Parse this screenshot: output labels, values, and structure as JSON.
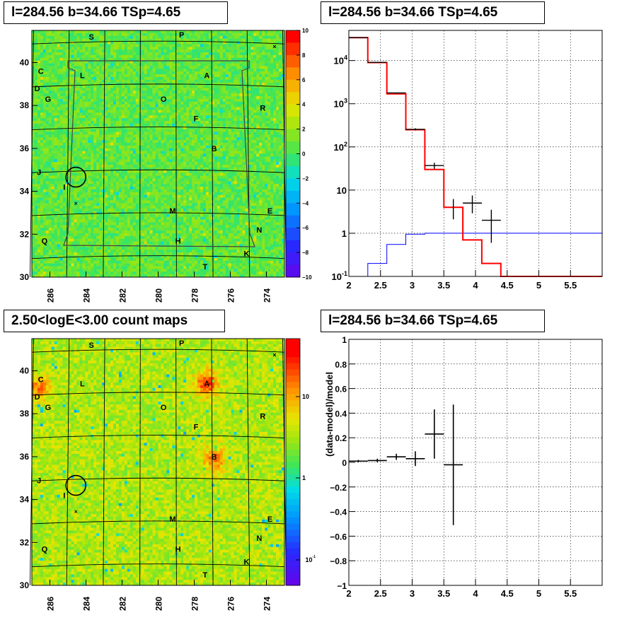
{
  "panels": {
    "top_left": {
      "title": "l=284.56 b=34.66 TSp=4.65"
    },
    "top_right": {
      "title": "l=284.56 b=34.66 TSp=4.65"
    },
    "bottom_left": {
      "title": "2.50<logE<3.00 count maps"
    },
    "bottom_right": {
      "title": "l=284.56 b=34.66 TSp=4.65"
    }
  },
  "colors": {
    "data": "#000000",
    "model": "#ff0000",
    "background": "#0000ff"
  },
  "chart_data": [
    {
      "type": "heatmap",
      "title": "l=284.56 b=34.66 TSp=4.65",
      "xlim": [
        287,
        273
      ],
      "ylim": [
        30,
        41.5
      ],
      "x_ticks": [
        "286",
        "284",
        "282",
        "280",
        "278",
        "276",
        "274"
      ],
      "y_ticks": [
        "30",
        "32",
        "34",
        "36",
        "38",
        "40"
      ],
      "colorbar": {
        "range": [
          -10,
          10
        ],
        "ticks": [
          "10",
          "8",
          "6",
          "4",
          "2",
          "0",
          "−2",
          "−4",
          "−6",
          "−8",
          "−10"
        ]
      },
      "sources": [
        {
          "label": "S",
          "l": 283.7,
          "b": 41.2
        },
        {
          "label": "P",
          "l": 278.7,
          "b": 41.3
        },
        {
          "label": "C",
          "l": 286.5,
          "b": 39.6
        },
        {
          "label": "L",
          "l": 284.2,
          "b": 39.4
        },
        {
          "label": "A",
          "l": 277.3,
          "b": 39.4
        },
        {
          "label": "D",
          "l": 286.7,
          "b": 38.8
        },
        {
          "label": "G",
          "l": 286.1,
          "b": 38.3
        },
        {
          "label": "O",
          "l": 279.7,
          "b": 38.3
        },
        {
          "label": "R",
          "l": 274.2,
          "b": 37.9
        },
        {
          "label": "F",
          "l": 277.9,
          "b": 37.4
        },
        {
          "label": "B",
          "l": 276.9,
          "b": 36.0
        },
        {
          "label": "J",
          "l": 286.6,
          "b": 34.9
        },
        {
          "label": "I",
          "l": 285.2,
          "b": 34.2
        },
        {
          "label": "M",
          "l": 279.2,
          "b": 33.1
        },
        {
          "label": "E",
          "l": 273.8,
          "b": 33.1
        },
        {
          "label": "N",
          "l": 274.4,
          "b": 32.2
        },
        {
          "label": "Q",
          "l": 286.3,
          "b": 31.7
        },
        {
          "label": "H",
          "l": 278.9,
          "b": 31.7
        },
        {
          "label": "K",
          "l": 275.1,
          "b": 31.1
        },
        {
          "label": "T",
          "l": 277.4,
          "b": 30.5
        }
      ]
    },
    {
      "type": "line",
      "title": "l=284.56 b=34.66 TSp=4.65",
      "yscale": "log",
      "xlim": [
        2,
        6
      ],
      "ylim": [
        0.1,
        50000
      ],
      "x_ticks": [
        "2",
        "2.5",
        "3",
        "3.5",
        "4",
        "4.5",
        "5",
        "5.5"
      ],
      "y_ticks": [
        "10^-1",
        "1",
        "10",
        "10^2",
        "10^3",
        "10^4"
      ],
      "grid": true,
      "series": [
        {
          "kind": "data",
          "points": [
            {
              "x": 2.15,
              "xerr": 0.15,
              "y": 34000,
              "ylo": 33800,
              "yhi": 34200
            },
            {
              "x": 2.45,
              "xerr": 0.15,
              "y": 9100,
              "ylo": 9000,
              "yhi": 9200
            },
            {
              "x": 2.75,
              "xerr": 0.15,
              "y": 1780,
              "ylo": 1740,
              "yhi": 1820
            },
            {
              "x": 3.05,
              "xerr": 0.15,
              "y": 255,
              "ylo": 240,
              "yhi": 270
            },
            {
              "x": 3.35,
              "xerr": 0.15,
              "y": 37,
              "ylo": 31,
              "yhi": 43
            },
            {
              "x": 3.65,
              "xerr": 0.0,
              "y": 4.0,
              "ylo": 2.1,
              "yhi": 6.2
            },
            {
              "x": 3.95,
              "xerr": 0.15,
              "y": 5.0,
              "ylo": 2.9,
              "yhi": 7.5
            },
            {
              "x": 4.25,
              "xerr": 0.15,
              "y": 2.0,
              "ylo": 0.6,
              "yhi": 3.5
            }
          ]
        },
        {
          "kind": "model",
          "steps": [
            {
              "x0": 2.0,
              "x1": 2.3,
              "y": 34000
            },
            {
              "x0": 2.3,
              "x1": 2.6,
              "y": 9000
            },
            {
              "x0": 2.6,
              "x1": 2.9,
              "y": 1700
            },
            {
              "x0": 2.9,
              "x1": 3.2,
              "y": 250
            },
            {
              "x0": 3.2,
              "x1": 3.5,
              "y": 30
            },
            {
              "x0": 3.5,
              "x1": 3.8,
              "y": 4.0
            },
            {
              "x0": 3.8,
              "x1": 4.1,
              "y": 0.7
            },
            {
              "x0": 4.1,
              "x1": 4.4,
              "y": 0.2
            },
            {
              "x0": 4.4,
              "x1": 6.0,
              "y": 0.1
            }
          ]
        },
        {
          "kind": "background",
          "steps": [
            {
              "x0": 2.3,
              "x1": 2.6,
              "y": 0.2
            },
            {
              "x0": 2.6,
              "x1": 2.9,
              "y": 0.55
            },
            {
              "x0": 2.9,
              "x1": 3.2,
              "y": 0.95
            },
            {
              "x0": 3.2,
              "x1": 6.0,
              "y": 1.0
            }
          ]
        }
      ]
    },
    {
      "type": "heatmap",
      "title": "2.50<logE<3.00 count maps",
      "xlim": [
        287,
        273
      ],
      "ylim": [
        30,
        41.5
      ],
      "x_ticks": [
        "286",
        "284",
        "282",
        "280",
        "278",
        "276",
        "274"
      ],
      "y_ticks": [
        "30",
        "32",
        "34",
        "36",
        "38",
        "40"
      ],
      "colorbar": {
        "scale": "log",
        "ticks": [
          "10",
          "1",
          "10^-1"
        ]
      },
      "hotspots": [
        {
          "label": "A",
          "l": 277.3,
          "b": 39.4,
          "strength": 1.0
        },
        {
          "label": "B",
          "l": 276.9,
          "b": 35.9,
          "strength": 0.8
        },
        {
          "label": "C/D",
          "l": 286.6,
          "b": 39.2,
          "strength": 0.7
        }
      ]
    },
    {
      "type": "scatter",
      "title": "l=284.56 b=34.66 TSp=4.65",
      "ylabel": "(data-model)/model",
      "xlim": [
        2,
        6
      ],
      "ylim": [
        -1,
        1
      ],
      "x_ticks": [
        "2",
        "2.5",
        "3",
        "3.5",
        "4",
        "4.5",
        "5",
        "5.5"
      ],
      "y_ticks": [
        "−1",
        "−0.8",
        "−0.6",
        "−0.4",
        "−0.2",
        "0",
        "0.2",
        "0.4",
        "0.6",
        "0.8",
        "1"
      ],
      "grid": true,
      "points": [
        {
          "x": 2.15,
          "xerr": 0.15,
          "y": 0.01,
          "yerr": 0.01
        },
        {
          "x": 2.45,
          "xerr": 0.15,
          "y": 0.015,
          "yerr": 0.015
        },
        {
          "x": 2.75,
          "xerr": 0.15,
          "y": 0.045,
          "yerr": 0.025
        },
        {
          "x": 3.05,
          "xerr": 0.15,
          "y": 0.03,
          "yerr": 0.06
        },
        {
          "x": 3.35,
          "xerr": 0.15,
          "y": 0.23,
          "yerr": 0.2
        },
        {
          "x": 3.65,
          "xerr": 0.15,
          "y": -0.02,
          "yerr": 0.49
        }
      ]
    }
  ]
}
